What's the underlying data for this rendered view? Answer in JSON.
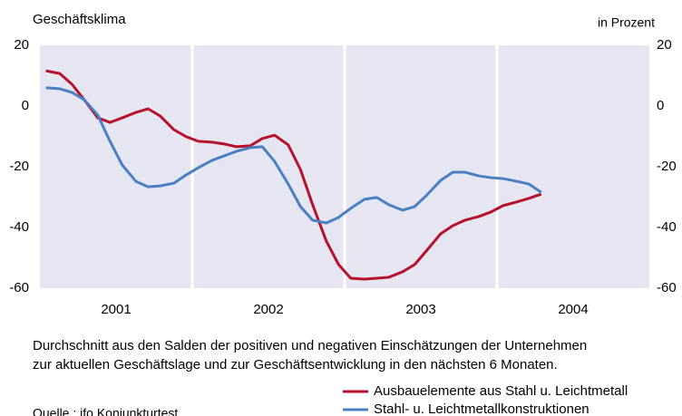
{
  "chart_data": {
    "type": "line",
    "title": "Geschäftsklima",
    "unit_label": "in Prozent",
    "note": [
      "Durchschnitt aus den Salden der positiven und negativen Einschätzungen der Unternehmen",
      "zur aktuellen Geschäftslage und zur Geschäftsentwicklung in den nächsten 6 Monaten."
    ],
    "source": "Quelle : ifo Konjunkturtest",
    "x": [
      2001.04,
      2001.13,
      2001.21,
      2001.29,
      2001.38,
      2001.46,
      2001.54,
      2001.63,
      2001.71,
      2001.79,
      2001.88,
      2001.96,
      2002.04,
      2002.13,
      2002.21,
      2002.29,
      2002.38,
      2002.46,
      2002.54,
      2002.63,
      2002.71,
      2002.79,
      2002.88,
      2002.96,
      2003.04,
      2003.13,
      2003.21,
      2003.29,
      2003.38,
      2003.46,
      2003.54,
      2003.63,
      2003.71,
      2003.79,
      2003.88,
      2003.96,
      2004.04,
      2004.13,
      2004.21,
      2004.29
    ],
    "series": [
      {
        "name": "Ausbauelemente aus Stahl u. Leichtmetall",
        "color": "#b5122b",
        "values": [
          11.6,
          10.7,
          7.2,
          2.1,
          -3.9,
          -5.4,
          -3.9,
          -2.1,
          -0.9,
          -3.3,
          -7.8,
          -10.1,
          -11.6,
          -11.9,
          -12.5,
          -13.4,
          -13.1,
          -10.7,
          -9.6,
          -12.8,
          -20.9,
          -32.5,
          -44.5,
          -52.2,
          -56.7,
          -57,
          -56.7,
          -56.4,
          -54.6,
          -52.2,
          -47.5,
          -42.1,
          -39.4,
          -37.6,
          -36.4,
          -34.9,
          -32.8,
          -31.6,
          -30.4,
          -29
        ]
      },
      {
        "name": "Stahl- u. Leichtmetallkonstruktionen",
        "color": "#4a7fc1",
        "values": [
          6,
          5.7,
          4.5,
          2.1,
          -3,
          -11.6,
          -19.4,
          -24.8,
          -26.6,
          -26.3,
          -25.4,
          -22.7,
          -20.3,
          -17.9,
          -16.4,
          -14.9,
          -13.7,
          -13.4,
          -18.2,
          -25.7,
          -33.1,
          -37.6,
          -38.5,
          -36.7,
          -33.7,
          -30.7,
          -30.1,
          -32.5,
          -34.3,
          -33.1,
          -29.3,
          -24.5,
          -21.8,
          -21.8,
          -23,
          -23.6,
          -23.9,
          -24.8,
          -25.7,
          -28.4
        ]
      }
    ],
    "xlim": [
      2001,
      2005
    ],
    "xticks": [
      {
        "value": 2001.5,
        "label": "2001"
      },
      {
        "value": 2002.5,
        "label": "2002"
      },
      {
        "value": 2003.5,
        "label": "2003"
      },
      {
        "value": 2004.5,
        "label": "2004"
      }
    ],
    "xgrid": [
      2002,
      2003,
      2004
    ],
    "ylim": [
      -60,
      20
    ],
    "yticks": [
      20,
      0,
      -20,
      -40,
      -60
    ],
    "background": "#e5e6f1"
  }
}
